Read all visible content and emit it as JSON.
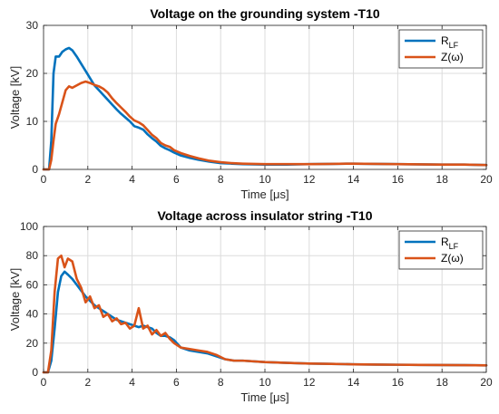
{
  "chart_data": [
    {
      "type": "line",
      "title": "Voltage on the grounding system -T10",
      "xlabel": "Time [μs]",
      "ylabel": "Voltage [kV]",
      "xlim": [
        0,
        20
      ],
      "ylim": [
        0,
        30
      ],
      "xticks": [
        "0",
        "2",
        "4",
        "6",
        "8",
        "10",
        "12",
        "14",
        "16",
        "18",
        "20"
      ],
      "yticks": [
        "0",
        "10",
        "20",
        "30"
      ],
      "grid": true,
      "legend_position": "top-right",
      "series": [
        {
          "name": "R_LF",
          "color": "#0072BD",
          "x": [
            0,
            0.25,
            0.35,
            0.45,
            0.55,
            0.7,
            0.85,
            1.0,
            1.15,
            1.3,
            1.5,
            1.7,
            1.9,
            2.1,
            2.3,
            2.5,
            2.7,
            2.9,
            3.1,
            3.3,
            3.5,
            3.7,
            3.9,
            4.1,
            4.3,
            4.5,
            4.7,
            4.9,
            5.1,
            5.3,
            5.5,
            5.7,
            5.9,
            6.2,
            6.6,
            7.0,
            7.5,
            8.0,
            8.5,
            9.0,
            10,
            11,
            12,
            13,
            14,
            15,
            16,
            17,
            18,
            19,
            20
          ],
          "values": [
            0,
            0,
            6,
            20,
            23.5,
            23.5,
            24.5,
            25,
            25.3,
            24.8,
            23.5,
            22,
            20.5,
            19,
            17.5,
            16.5,
            15.5,
            14.5,
            13.5,
            12.5,
            11.6,
            10.8,
            10,
            9,
            8.7,
            8.3,
            7.3,
            6.5,
            5.8,
            4.9,
            4.4,
            4,
            3.5,
            2.9,
            2.4,
            2,
            1.6,
            1.3,
            1.2,
            1.1,
            1.0,
            1.0,
            1.1,
            1.15,
            1.2,
            1.15,
            1.1,
            1.05,
            1.0,
            1.0,
            0.9
          ]
        },
        {
          "name": "Z(ω)",
          "color": "#D95319",
          "x": [
            0,
            0.25,
            0.35,
            0.45,
            0.55,
            0.7,
            0.85,
            1.0,
            1.15,
            1.3,
            1.5,
            1.7,
            1.9,
            2.1,
            2.3,
            2.5,
            2.7,
            2.9,
            3.1,
            3.3,
            3.5,
            3.7,
            3.9,
            4.1,
            4.3,
            4.5,
            4.7,
            4.9,
            5.1,
            5.3,
            5.5,
            5.7,
            5.9,
            6.2,
            6.6,
            7.0,
            7.5,
            8.0,
            8.5,
            9.0,
            10,
            11,
            12,
            13,
            14,
            15,
            16,
            17,
            18,
            19,
            20
          ],
          "values": [
            0,
            0,
            2,
            6,
            9.5,
            11.5,
            14,
            16.5,
            17.3,
            17,
            17.5,
            18,
            18.3,
            18,
            17.6,
            17.3,
            16.8,
            16,
            14.8,
            13.8,
            12.9,
            12,
            11,
            10.2,
            9.8,
            9.2,
            8.2,
            7.2,
            6.5,
            5.5,
            5,
            4.7,
            4,
            3.4,
            2.8,
            2.3,
            1.8,
            1.5,
            1.3,
            1.2,
            1.1,
            1.1,
            1.1,
            1.15,
            1.2,
            1.15,
            1.1,
            1.05,
            1.0,
            1.0,
            0.9
          ]
        }
      ]
    },
    {
      "type": "line",
      "title": "Voltage across insulator string -T10",
      "xlabel": "Time [μs]",
      "ylabel": "Voltage [kV]",
      "xlim": [
        0,
        20
      ],
      "ylim": [
        0,
        100
      ],
      "xticks": [
        "0",
        "2",
        "4",
        "6",
        "8",
        "10",
        "12",
        "14",
        "16",
        "18",
        "20"
      ],
      "yticks": [
        "0",
        "20",
        "40",
        "60",
        "80",
        "100"
      ],
      "grid": true,
      "legend_position": "top-right",
      "series": [
        {
          "name": "R_LF",
          "color": "#0072BD",
          "x": [
            0,
            0.2,
            0.35,
            0.5,
            0.65,
            0.8,
            0.95,
            1.1,
            1.3,
            1.5,
            1.7,
            1.9,
            2.1,
            2.3,
            2.5,
            2.7,
            2.9,
            3.1,
            3.3,
            3.5,
            3.7,
            3.9,
            4.1,
            4.3,
            4.5,
            4.7,
            4.9,
            5.1,
            5.3,
            5.5,
            5.7,
            5.9,
            6.2,
            6.6,
            7.0,
            7.4,
            7.8,
            8.2,
            8.6,
            9.0,
            10,
            11,
            12,
            13,
            14,
            15,
            16,
            17,
            18,
            19,
            20
          ],
          "values": [
            0,
            0,
            8,
            30,
            55,
            66,
            69,
            67,
            64,
            60,
            56,
            52,
            49,
            46,
            44,
            42,
            40,
            38,
            36,
            35,
            34,
            33,
            32,
            31,
            32,
            31,
            30,
            27,
            25,
            25,
            24,
            22,
            17,
            15,
            14,
            13,
            11,
            9,
            8,
            8,
            7,
            6.5,
            6,
            5.8,
            5.5,
            5.3,
            5.2,
            5.1,
            5.0,
            4.9,
            4.8
          ]
        },
        {
          "name": "Z(ω)",
          "color": "#D95319",
          "x": [
            0,
            0.2,
            0.35,
            0.5,
            0.65,
            0.8,
            0.95,
            1.1,
            1.3,
            1.5,
            1.7,
            1.9,
            2.1,
            2.3,
            2.5,
            2.7,
            2.9,
            3.1,
            3.3,
            3.5,
            3.7,
            3.9,
            4.1,
            4.3,
            4.5,
            4.7,
            4.9,
            5.1,
            5.3,
            5.5,
            5.7,
            5.9,
            6.2,
            6.6,
            7.0,
            7.4,
            7.8,
            8.2,
            8.6,
            9.0,
            10,
            11,
            12,
            13,
            14,
            15,
            16,
            17,
            18,
            19,
            20
          ],
          "values": [
            0,
            0,
            15,
            55,
            78,
            80,
            72,
            78,
            76,
            64,
            58,
            48,
            52,
            44,
            46,
            38,
            40,
            35,
            37,
            33,
            34,
            30,
            32,
            44,
            30,
            32,
            26,
            29,
            25,
            27,
            23,
            20,
            17,
            16,
            15,
            14,
            12,
            9,
            8,
            8,
            7,
            6.5,
            6,
            5.8,
            5.5,
            5.3,
            5.2,
            5.1,
            5.0,
            4.9,
            4.8
          ]
        }
      ]
    }
  ]
}
